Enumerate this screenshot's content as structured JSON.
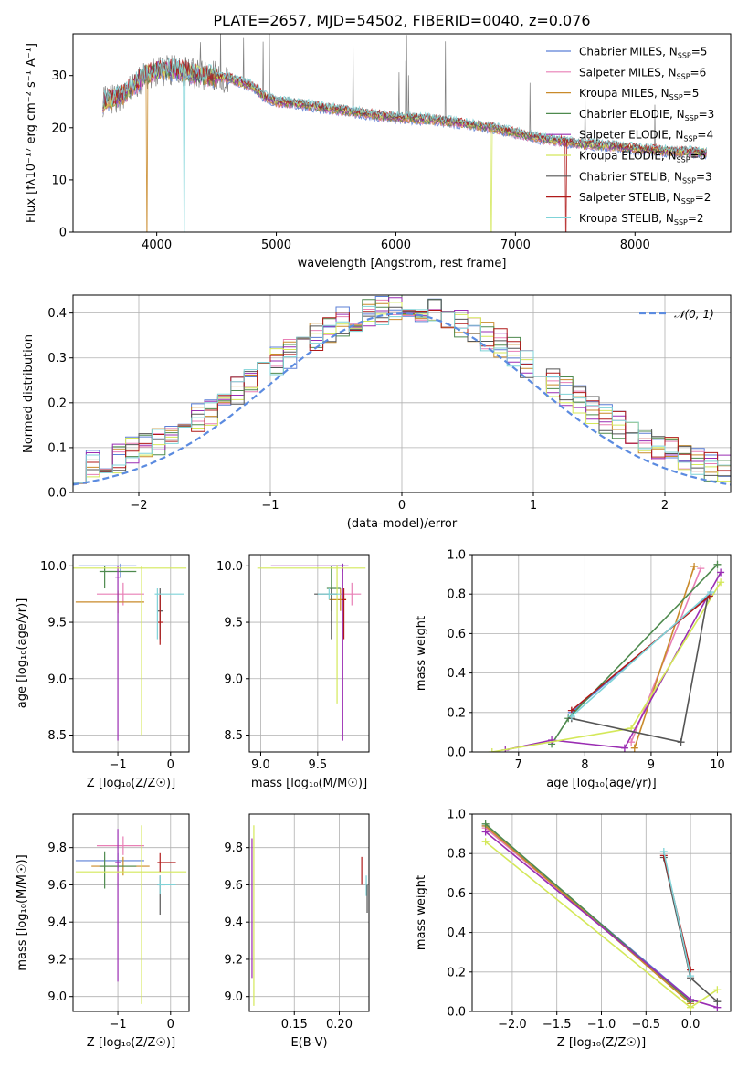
{
  "figure_title": "PLATE=2657, MJD=54502, FIBERID=0040, z=0.076",
  "series_colors": {
    "Chabrier MILES": "#5b7fd6",
    "Salpeter MILES": "#e87fb5",
    "Kroupa MILES": "#c98a2a",
    "Chabrier ELODIE": "#4e8a4e",
    "Salpeter ELODIE": "#9a2db3",
    "Kroupa ELODIE": "#d4e85a",
    "Chabrier STELIB": "#555555",
    "Salpeter STELIB": "#b01a1a",
    "Kroupa STELIB": "#7fd3d8"
  },
  "chart_data": [
    {
      "id": "spectrum",
      "type": "line",
      "ylabel": "Flux [f$_\\lambda$10$^{-17}$ erg cm$^{-2}$ s$^{-1}$ A$^{-1}$]",
      "ylabel_display": "Flux [fλ10⁻¹⁷ erg cm⁻² s⁻¹ A⁻¹]",
      "xlabel": "wavelength [Angstrom, rest frame]",
      "xlim": [
        3300,
        8800
      ],
      "ylim": [
        0,
        38
      ],
      "xticks": [
        4000,
        5000,
        6000,
        7000,
        8000
      ],
      "yticks": [
        0,
        10,
        20,
        30
      ],
      "grid": false,
      "legend_position": "top-right",
      "legend": [
        {
          "name": "Chabrier MILES",
          "suffix": "5"
        },
        {
          "name": "Salpeter MILES",
          "suffix": "6"
        },
        {
          "name": "Kroupa MILES",
          "suffix": "5"
        },
        {
          "name": "Chabrier ELODIE",
          "suffix": "3"
        },
        {
          "name": "Salpeter ELODIE",
          "suffix": "4"
        },
        {
          "name": "Kroupa ELODIE",
          "suffix": "5"
        },
        {
          "name": "Chabrier STELIB",
          "suffix": "3"
        },
        {
          "name": "Salpeter STELIB",
          "suffix": "2"
        },
        {
          "name": "Kroupa STELIB",
          "suffix": "2"
        }
      ],
      "legend_label_prefix": ", N",
      "legend_label_sub": "SSP",
      "continuum": [
        [
          3550,
          25
        ],
        [
          3700,
          26
        ],
        [
          3800,
          28
        ],
        [
          3900,
          30
        ],
        [
          4000,
          31
        ],
        [
          4200,
          31
        ],
        [
          4400,
          30
        ],
        [
          4600,
          29.5
        ],
        [
          4800,
          28
        ],
        [
          4900,
          26
        ],
        [
          5000,
          25
        ],
        [
          5200,
          24.5
        ],
        [
          5500,
          23.5
        ],
        [
          5800,
          22.5
        ],
        [
          6000,
          22
        ],
        [
          6300,
          21.5
        ],
        [
          6500,
          21
        ],
        [
          6800,
          20
        ],
        [
          7000,
          19
        ],
        [
          7200,
          18
        ],
        [
          7500,
          17
        ],
        [
          7800,
          16.5
        ],
        [
          8000,
          16
        ],
        [
          8300,
          15.5
        ],
        [
          8600,
          15.2
        ]
      ],
      "data_spectrum_color": "#808080",
      "model_wavelength_range": [
        3550,
        8600
      ],
      "cut_offs": [
        {
          "series": "Kroupa MILES",
          "x": 3920
        },
        {
          "series": "Kroupa STELIB",
          "x": 4230
        },
        {
          "series": "Kroupa ELODIE",
          "x": 6800
        },
        {
          "series": "Salpeter STELIB",
          "x": 7420
        }
      ]
    },
    {
      "id": "residuals",
      "type": "histogram",
      "ylabel": "Normed distribution",
      "xlabel": "(data-model)/error",
      "xlim": [
        -2.5,
        2.5
      ],
      "ylim": [
        0,
        0.44
      ],
      "xticks": [
        -2,
        -1,
        0,
        1,
        2
      ],
      "yticks": [
        0.0,
        0.1,
        0.2,
        0.3,
        0.4
      ],
      "grid": true,
      "legend_position": "top-right",
      "reference_curve": {
        "name": "𝒩(0, 1)",
        "color": "#5b8be0",
        "style": "dashed",
        "mu": 0,
        "sigma": 1
      },
      "bin_width": 0.1,
      "approx_sigma": 1.1
    },
    {
      "id": "age_vs_Z",
      "type": "errorbar",
      "xlabel": "Z [log₁₀(Z/Z☉)]",
      "ylabel": "age  [log₁₀(age/yr)]",
      "xlim": [
        -1.85,
        0.35
      ],
      "ylim": [
        8.35,
        10.1
      ],
      "xticks": [
        -1,
        0
      ],
      "yticks": [
        8.5,
        9.0,
        9.5,
        10.0
      ],
      "grid": true,
      "points": [
        {
          "series": "Chabrier MILES",
          "x": -0.95,
          "xerr": [
            0.8,
            0.3
          ],
          "y": 10.0,
          "yerr": [
            0.1,
            0.02
          ]
        },
        {
          "series": "Salpeter MILES",
          "x": -0.9,
          "xerr": [
            0.5,
            0.4
          ],
          "y": 9.75,
          "yerr": [
            0.1,
            0.1
          ]
        },
        {
          "series": "Kroupa MILES",
          "x": -1.0,
          "xerr": [
            0.8,
            0.5
          ],
          "y": 9.68,
          "yerr": [
            0.1,
            0.1
          ]
        },
        {
          "series": "Chabrier ELODIE",
          "x": -1.25,
          "xerr": [
            0.1,
            0.6
          ],
          "y": 9.95,
          "yerr": [
            0.15,
            0.05
          ]
        },
        {
          "series": "Salpeter ELODIE",
          "x": -1.0,
          "xerr": [
            0.05,
            0.05
          ],
          "y": 9.9,
          "yerr": [
            1.45,
            0.1
          ]
        },
        {
          "series": "Kroupa ELODIE",
          "x": -0.55,
          "xerr": [
            1.3,
            0.85
          ],
          "y": 9.98,
          "yerr": [
            1.48,
            0.02
          ]
        },
        {
          "series": "Chabrier STELIB",
          "x": -0.2,
          "xerr": [
            0.05,
            0.05
          ],
          "y": 9.6,
          "yerr": [
            0.25,
            0.2
          ]
        },
        {
          "series": "Salpeter STELIB",
          "x": -0.2,
          "xerr": [
            0.05,
            0.05
          ],
          "y": 9.5,
          "yerr": [
            0.2,
            0.25
          ]
        },
        {
          "series": "Kroupa STELIB",
          "x": -0.25,
          "xerr": [
            0.05,
            0.5
          ],
          "y": 9.75,
          "yerr": [
            0.4,
            0.05
          ]
        }
      ]
    },
    {
      "id": "age_vs_mass",
      "type": "errorbar",
      "xlabel": "mass [log₁₀(M/M☉)]",
      "ylabel": "",
      "xlim": [
        8.9,
        9.95
      ],
      "ylim": [
        8.35,
        10.1
      ],
      "xticks": [
        9.0,
        9.5
      ],
      "yticks": [
        8.5,
        9.0,
        9.5,
        10.0
      ],
      "grid": true,
      "points": [
        {
          "series": "Chabrier MILES",
          "x": 9.72,
          "xerr": [
            0.1,
            0.02
          ],
          "y": 10.0,
          "yerr": [
            0.05,
            0.02
          ]
        },
        {
          "series": "Salpeter MILES",
          "x": 9.8,
          "xerr": [
            0.1,
            0.08
          ],
          "y": 9.75,
          "yerr": [
            0.1,
            0.1
          ]
        },
        {
          "series": "Kroupa MILES",
          "x": 9.7,
          "xerr": [
            0.1,
            0.05
          ],
          "y": 9.7,
          "yerr": [
            0.1,
            0.1
          ]
        },
        {
          "series": "Chabrier ELODIE",
          "x": 9.62,
          "xerr": [
            0.04,
            0.08
          ],
          "y": 9.8,
          "yerr": [
            0.2,
            0.2
          ]
        },
        {
          "series": "Salpeter ELODIE",
          "x": 9.72,
          "xerr": [
            0.63,
            0.05
          ],
          "y": 10.0,
          "yerr": [
            1.55,
            0.02
          ]
        },
        {
          "series": "Kroupa ELODIE",
          "x": 9.67,
          "xerr": [
            0.7,
            0.25
          ],
          "y": 9.98,
          "yerr": [
            1.2,
            0.03
          ]
        },
        {
          "series": "Chabrier STELIB",
          "x": 9.62,
          "xerr": [
            0.15,
            0.05
          ],
          "y": 9.75,
          "yerr": [
            0.4,
            0.05
          ]
        },
        {
          "series": "Salpeter STELIB",
          "x": 9.73,
          "xerr": [
            0.02,
            0.02
          ],
          "y": 9.7,
          "yerr": [
            0.35,
            0.1
          ]
        },
        {
          "series": "Kroupa STELIB",
          "x": 9.6,
          "xerr": [
            0.1,
            0.1
          ],
          "y": 9.75,
          "yerr": [
            0.05,
            0.05
          ]
        }
      ]
    },
    {
      "id": "massweight_vs_age",
      "type": "line",
      "xlabel": "age  [log₁₀(age/yr)]",
      "ylabel": "mass weight",
      "xlim": [
        6.3,
        10.2
      ],
      "ylim": [
        0,
        1
      ],
      "xticks": [
        7,
        8,
        9,
        10
      ],
      "yticks": [
        0.0,
        0.2,
        0.4,
        0.6,
        0.8,
        1.0
      ],
      "grid": true,
      "series": [
        {
          "name": "Chabrier MILES",
          "x": [
            7.8,
            9.9
          ],
          "y": [
            0.2,
            0.8
          ]
        },
        {
          "name": "Salpeter MILES",
          "x": [
            8.7,
            9.75
          ],
          "y": [
            0.05,
            0.93
          ]
        },
        {
          "name": "Kroupa MILES",
          "x": [
            8.75,
            9.65
          ],
          "y": [
            0.02,
            0.94
          ]
        },
        {
          "name": "Chabrier ELODIE",
          "x": [
            7.5,
            7.75,
            10.0
          ],
          "y": [
            0.04,
            0.17,
            0.95
          ]
        },
        {
          "name": "Salpeter ELODIE",
          "x": [
            6.8,
            7.5,
            8.6,
            10.05
          ],
          "y": [
            0.01,
            0.06,
            0.02,
            0.91
          ]
        },
        {
          "name": "Kroupa ELODIE",
          "x": [
            6.6,
            8.7,
            10.05
          ],
          "y": [
            0.0,
            0.12,
            0.86
          ]
        },
        {
          "name": "Chabrier STELIB",
          "x": [
            7.8,
            9.45,
            9.85
          ],
          "y": [
            0.17,
            0.05,
            0.78
          ]
        },
        {
          "name": "Salpeter STELIB",
          "x": [
            7.8,
            9.88
          ],
          "y": [
            0.21,
            0.79
          ]
        },
        {
          "name": "Kroupa STELIB",
          "x": [
            7.8,
            9.9
          ],
          "y": [
            0.18,
            0.81
          ]
        }
      ]
    },
    {
      "id": "mass_vs_Z",
      "type": "errorbar",
      "xlabel": "Z [log₁₀(Z/Z☉)]",
      "ylabel": "mass [log₁₀(M/M☉)]",
      "xlim": [
        -1.85,
        0.35
      ],
      "ylim": [
        8.92,
        9.98
      ],
      "xticks": [
        -1,
        0
      ],
      "yticks": [
        9.0,
        9.2,
        9.4,
        9.6,
        9.8
      ],
      "grid": true,
      "points": [
        {
          "series": "Chabrier MILES",
          "x": -1.0,
          "xerr": [
            0.8,
            0.5
          ],
          "y": 9.73,
          "yerr": [
            0.04,
            0.04
          ]
        },
        {
          "series": "Salpeter MILES",
          "x": -0.9,
          "xerr": [
            0.5,
            0.4
          ],
          "y": 9.81,
          "yerr": [
            0.05,
            0.05
          ]
        },
        {
          "series": "Kroupa MILES",
          "x": -0.9,
          "xerr": [
            0.6,
            0.5
          ],
          "y": 9.7,
          "yerr": [
            0.05,
            0.05
          ]
        },
        {
          "series": "Chabrier ELODIE",
          "x": -1.25,
          "xerr": [
            0.1,
            0.6
          ],
          "y": 9.7,
          "yerr": [
            0.12,
            0.08
          ]
        },
        {
          "series": "Salpeter ELODIE",
          "x": -1.0,
          "xerr": [
            0.05,
            0.05
          ],
          "y": 9.72,
          "yerr": [
            0.64,
            0.18
          ]
        },
        {
          "series": "Kroupa ELODIE",
          "x": -0.55,
          "xerr": [
            1.25,
            0.85
          ],
          "y": 9.67,
          "yerr": [
            0.71,
            0.25
          ]
        },
        {
          "series": "Chabrier STELIB",
          "x": -0.2,
          "xerr": [
            0.05,
            0.1
          ],
          "y": 9.6,
          "yerr": [
            0.16,
            0.05
          ]
        },
        {
          "series": "Salpeter STELIB",
          "x": -0.2,
          "xerr": [
            0.05,
            0.3
          ],
          "y": 9.72,
          "yerr": [
            0.05,
            0.05
          ]
        },
        {
          "series": "Kroupa STELIB",
          "x": -0.2,
          "xerr": [
            0.05,
            0.3
          ],
          "y": 9.6,
          "yerr": [
            0.05,
            0.05
          ]
        }
      ]
    },
    {
      "id": "mass_vs_EBV",
      "type": "errorbar",
      "xlabel": "E(B-V)",
      "ylabel": "",
      "xlim": [
        0.1,
        0.233
      ],
      "ylim": [
        8.92,
        9.98
      ],
      "xticks": [
        0.15,
        0.2
      ],
      "yticks": [
        9.0,
        9.2,
        9.4,
        9.6,
        9.8
      ],
      "grid": true,
      "points": [
        {
          "series": "Kroupa ELODIE",
          "x": 0.105,
          "xerr": [
            0,
            0
          ],
          "y": 9.65,
          "yerr": [
            0.7,
            0.27
          ]
        },
        {
          "series": "Salpeter ELODIE",
          "x": 0.103,
          "xerr": [
            0,
            0
          ],
          "y": 9.7,
          "yerr": [
            0.6,
            0.15
          ]
        },
        {
          "series": "Salpeter STELIB",
          "x": 0.225,
          "xerr": [
            0,
            0
          ],
          "y": 9.7,
          "yerr": [
            0.1,
            0.05
          ]
        },
        {
          "series": "Kroupa STELIB",
          "x": 0.23,
          "xerr": [
            0,
            0
          ],
          "y": 9.62,
          "yerr": [
            0.08,
            0.03
          ]
        },
        {
          "series": "Chabrier STELIB",
          "x": 0.231,
          "xerr": [
            0,
            0
          ],
          "y": 9.55,
          "yerr": [
            0.1,
            0.05
          ]
        }
      ]
    },
    {
      "id": "massweight_vs_Z",
      "type": "line",
      "xlabel": "Z [log₁₀(Z/Z☉)]",
      "ylabel": "mass weight",
      "xlim": [
        -2.45,
        0.45
      ],
      "ylim": [
        0,
        1
      ],
      "xticks": [
        -2.0,
        -1.5,
        -1.0,
        -0.5,
        0.0
      ],
      "yticks": [
        0.0,
        0.2,
        0.4,
        0.6,
        0.8,
        1.0
      ],
      "grid": true,
      "series": [
        {
          "name": "Chabrier MILES",
          "x": [
            -2.3,
            0.0
          ],
          "y": [
            0.94,
            0.06
          ]
        },
        {
          "name": "Salpeter MILES",
          "x": [
            -2.3,
            0.0
          ],
          "y": [
            0.93,
            0.05
          ]
        },
        {
          "name": "Kroupa MILES",
          "x": [
            -2.3,
            0.0
          ],
          "y": [
            0.94,
            0.04
          ]
        },
        {
          "name": "Chabrier ELODIE",
          "x": [
            -2.3,
            0.0
          ],
          "y": [
            0.95,
            0.05
          ]
        },
        {
          "name": "Salpeter ELODIE",
          "x": [
            -2.3,
            0.0,
            0.3
          ],
          "y": [
            0.91,
            0.06,
            0.02
          ]
        },
        {
          "name": "Kroupa ELODIE",
          "x": [
            -2.3,
            0.0,
            0.3
          ],
          "y": [
            0.86,
            0.02,
            0.11
          ]
        },
        {
          "name": "Chabrier STELIB",
          "x": [
            -0.3,
            0.0,
            0.3
          ],
          "y": [
            0.78,
            0.17,
            0.05
          ]
        },
        {
          "name": "Salpeter STELIB",
          "x": [
            -0.3,
            0.0
          ],
          "y": [
            0.79,
            0.21
          ]
        },
        {
          "name": "Kroupa STELIB",
          "x": [
            -0.3,
            0.0
          ],
          "y": [
            0.81,
            0.18
          ]
        }
      ]
    }
  ]
}
